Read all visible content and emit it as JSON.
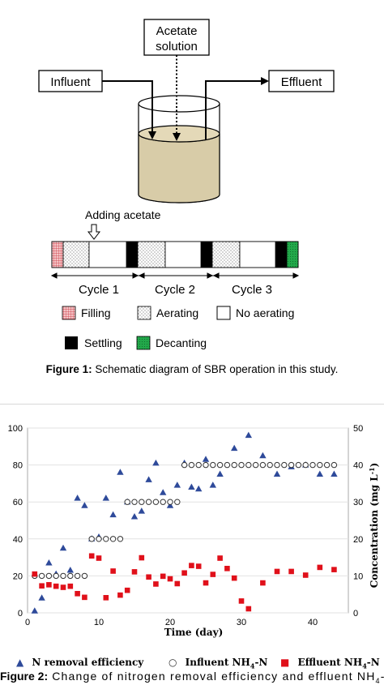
{
  "figure1": {
    "labels": {
      "acetate_line1": "Acetate",
      "acetate_line2": "solution",
      "influent": "Influent",
      "effluent": "Effluent",
      "adding_acetate": "Adding acetate",
      "cycle1": "Cycle 1",
      "cycle2": "Cycle 2",
      "cycle3": "Cycle 3"
    },
    "legend": {
      "filling": "Filling",
      "aerating": "Aerating",
      "no_aerating": "No aerating",
      "settling": "Settling",
      "decanting": "Decanting"
    },
    "caption_bold": "Figure 1:",
    "caption_text": " Schematic diagram of SBR operation in this study.",
    "colors": {
      "liquid": "#d8cca8",
      "filling": "#e88a90",
      "decanting": "#22a84a",
      "settling": "#000000"
    }
  },
  "figure2": {
    "caption_bold": "Figure 2:",
    "caption_text": " Change of nitrogen removal efficiency and effluent NH",
    "caption_sub": "4",
    "caption_tail": "-N",
    "legend": {
      "n_removal": "N removal efficiency",
      "influent": "Influent NH",
      "influent_sub": "4",
      "influent_tail": "-N",
      "effluent": "Effluent NH",
      "effluent_sub": "4",
      "effluent_tail": "-N"
    }
  },
  "chart_data": {
    "type": "scatter",
    "xlabel": "Time (day)",
    "ylabel_left": "",
    "ylabel_right": "Concentration (mg L",
    "ylabel_right_sup": "-1",
    "ylabel_right_tail": ")",
    "xlim": [
      0,
      45
    ],
    "ylim_left": [
      0,
      100
    ],
    "ylim_right": [
      0,
      50
    ],
    "x_ticks": [
      0,
      10,
      20,
      30,
      40
    ],
    "y_left_ticks": [
      0,
      20,
      40,
      60,
      80,
      100
    ],
    "y_right_ticks": [
      0,
      10,
      20,
      30,
      40,
      50
    ],
    "colors": {
      "n_removal": "#2e4a9a",
      "influent": "#333333",
      "effluent": "#e0101a"
    },
    "series": [
      {
        "name": "N removal efficiency",
        "axis": "left",
        "marker": "triangle",
        "x": [
          1,
          2,
          3,
          4,
          5,
          6,
          7,
          8,
          9,
          10,
          11,
          12,
          13,
          14,
          15,
          16,
          17,
          18,
          19,
          20,
          21,
          22,
          23,
          24,
          25,
          26,
          27,
          29,
          31,
          33,
          35,
          37,
          39,
          41,
          43
        ],
        "y": [
          1,
          8,
          27,
          21,
          35,
          23,
          62,
          58,
          40,
          41,
          62,
          53,
          76,
          60,
          52,
          55,
          72,
          81,
          65,
          58,
          69,
          81,
          68,
          67,
          83,
          69,
          75,
          89,
          96,
          85,
          75,
          79,
          80,
          75,
          75
        ]
      },
      {
        "name": "Influent NH4-N",
        "axis": "right",
        "marker": "circle",
        "x": [
          1,
          2,
          3,
          4,
          5,
          6,
          7,
          8,
          9,
          10,
          11,
          12,
          13,
          14,
          15,
          16,
          17,
          18,
          19,
          20,
          21,
          22,
          23,
          24,
          25,
          26,
          27,
          28,
          29,
          30,
          31,
          32,
          33,
          34,
          35,
          36,
          37,
          38,
          39,
          40,
          41,
          42,
          43
        ],
        "y": [
          10,
          10,
          10,
          10,
          10,
          10,
          10,
          10,
          20,
          20,
          20,
          20,
          20,
          30,
          30,
          30,
          30,
          30,
          30,
          30,
          30,
          40,
          40,
          40,
          40,
          40,
          40,
          40,
          40,
          40,
          40,
          40,
          40,
          40,
          40,
          40,
          40,
          40,
          40,
          40,
          40,
          40,
          40
        ]
      },
      {
        "name": "Effluent NH4-N",
        "axis": "right",
        "marker": "square",
        "x": [
          1,
          2,
          3,
          4,
          5,
          6,
          7,
          8,
          9,
          10,
          11,
          12,
          13,
          14,
          15,
          16,
          17,
          18,
          19,
          20,
          21,
          22,
          23,
          24,
          25,
          26,
          27,
          28,
          29,
          30,
          31,
          33,
          35,
          37,
          39,
          41,
          43
        ],
        "y": [
          10.5,
          7.3,
          7.6,
          7.2,
          6.9,
          7.2,
          5.2,
          4.2,
          15.4,
          14.8,
          4.1,
          11.3,
          4.8,
          6.1,
          11.1,
          14.9,
          9.7,
          7.8,
          9.9,
          9.2,
          7.9,
          10.8,
          12.8,
          12.6,
          8.1,
          10.4,
          14.8,
          12,
          9.4,
          3.2,
          1.1,
          8.1,
          11.2,
          11.2,
          10.2,
          12.3,
          11.7
        ]
      }
    ]
  }
}
